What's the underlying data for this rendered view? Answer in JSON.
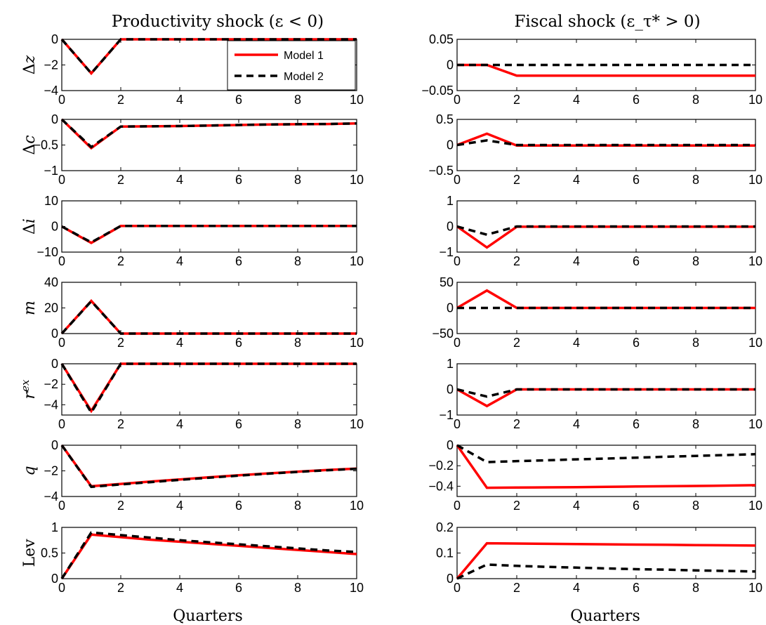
{
  "chart_data": {
    "type": "line",
    "x": [
      0,
      1,
      2,
      3,
      4,
      5,
      6,
      7,
      8,
      9,
      10
    ],
    "xlabel": "Quarters",
    "xticks": [
      "0",
      "2",
      "4",
      "6",
      "8",
      "10"
    ],
    "legend": {
      "placement": "top-right of first panel",
      "entries": [
        {
          "name": "Model 1",
          "color": "#ff0000",
          "style": "solid"
        },
        {
          "name": "Model 2",
          "color": "#000000",
          "style": "dashed"
        }
      ]
    },
    "columns": [
      {
        "title": "Productivity shock (ε < 0)",
        "panels": [
          {
            "ylabel": "Δz",
            "ylim": [
              -4,
              0
            ],
            "yticks": [
              "0",
              "−2",
              "−4"
            ],
            "series": [
              {
                "name": "Model 1",
                "values": [
                  0,
                  -2.65,
                  0,
                  0,
                  0,
                  0,
                  0,
                  0,
                  0,
                  0,
                  0
                ]
              },
              {
                "name": "Model 2",
                "values": [
                  0,
                  -2.65,
                  0,
                  0,
                  0,
                  0,
                  0,
                  0,
                  0,
                  0,
                  0
                ]
              }
            ]
          },
          {
            "ylabel": "Δc",
            "ylim": [
              -1,
              0
            ],
            "yticks": [
              "0",
              "−0.5",
              "−1"
            ],
            "series": [
              {
                "name": "Model 1",
                "values": [
                  0,
                  -0.56,
                  -0.14,
                  -0.135,
                  -0.13,
                  -0.12,
                  -0.11,
                  -0.1,
                  -0.095,
                  -0.09,
                  -0.08
                ]
              },
              {
                "name": "Model 2",
                "values": [
                  0,
                  -0.54,
                  -0.14,
                  -0.135,
                  -0.13,
                  -0.12,
                  -0.11,
                  -0.1,
                  -0.095,
                  -0.09,
                  -0.08
                ]
              }
            ]
          },
          {
            "ylabel": "Δi",
            "ylim": [
              -10,
              10
            ],
            "yticks": [
              "10",
              "0",
              "−10"
            ],
            "series": [
              {
                "name": "Model 1",
                "values": [
                  0,
                  -6.4,
                  0.2,
                  0.2,
                  0.2,
                  0.2,
                  0.2,
                  0.2,
                  0.2,
                  0.2,
                  0.2
                ]
              },
              {
                "name": "Model 2",
                "values": [
                  0,
                  -6.2,
                  0.2,
                  0.2,
                  0.2,
                  0.2,
                  0.2,
                  0.2,
                  0.2,
                  0.2,
                  0.2
                ]
              }
            ]
          },
          {
            "ylabel": "m",
            "ylim": [
              0,
              40
            ],
            "yticks": [
              "40",
              "20",
              "0"
            ],
            "series": [
              {
                "name": "Model 1",
                "values": [
                  0,
                  25.5,
                  0,
                  0,
                  0,
                  0,
                  0,
                  0,
                  0,
                  0,
                  0
                ]
              },
              {
                "name": "Model 2",
                "values": [
                  0,
                  25.2,
                  0,
                  0,
                  0,
                  0,
                  0,
                  0,
                  0,
                  0,
                  0
                ]
              }
            ]
          },
          {
            "ylabel": "r^ex",
            "ylim": [
              -5,
              0
            ],
            "yticks": [
              "0",
              "−2",
              "−4"
            ],
            "series": [
              {
                "name": "Model 1",
                "values": [
                  0,
                  -4.6,
                  0,
                  0,
                  0,
                  0,
                  0,
                  0,
                  0,
                  0,
                  0
                ]
              },
              {
                "name": "Model 2",
                "values": [
                  0,
                  -4.75,
                  0,
                  0,
                  0,
                  0,
                  0,
                  0,
                  0,
                  0,
                  0
                ]
              }
            ]
          },
          {
            "ylabel": "q",
            "ylim": [
              -4,
              0
            ],
            "yticks": [
              "0",
              "−2",
              "−4"
            ],
            "series": [
              {
                "name": "Model 1",
                "values": [
                  0,
                  -3.2,
                  -3.02,
                  -2.84,
                  -2.67,
                  -2.5,
                  -2.34,
                  -2.2,
                  -2.06,
                  -1.93,
                  -1.82
                ]
              },
              {
                "name": "Model 2",
                "values": [
                  0,
                  -3.25,
                  -3.06,
                  -2.88,
                  -2.7,
                  -2.53,
                  -2.37,
                  -2.22,
                  -2.08,
                  -1.95,
                  -1.84
                ]
              }
            ]
          },
          {
            "ylabel": "Lev",
            "ylim": [
              0,
              1
            ],
            "yticks": [
              "1",
              "0.5",
              "0"
            ],
            "series": [
              {
                "name": "Model 1",
                "values": [
                  0,
                  0.86,
                  0.81,
                  0.76,
                  0.72,
                  0.68,
                  0.64,
                  0.6,
                  0.56,
                  0.52,
                  0.48
                ]
              },
              {
                "name": "Model 2",
                "values": [
                  0,
                  0.9,
                  0.85,
                  0.8,
                  0.75,
                  0.71,
                  0.67,
                  0.63,
                  0.59,
                  0.55,
                  0.52
                ]
              }
            ]
          }
        ]
      },
      {
        "title": "Fiscal shock (ε_τ* > 0)",
        "panels": [
          {
            "ylabel": "",
            "ylim": [
              -0.05,
              0.05
            ],
            "yticks": [
              "0.05",
              "0",
              "−0.05"
            ],
            "series": [
              {
                "name": "Model 1",
                "values": [
                  0,
                  0,
                  -0.021,
                  -0.021,
                  -0.021,
                  -0.021,
                  -0.021,
                  -0.021,
                  -0.021,
                  -0.021,
                  -0.021
                ]
              },
              {
                "name": "Model 2",
                "values": [
                  0,
                  0,
                  0,
                  0,
                  0,
                  0,
                  0,
                  0,
                  0,
                  0,
                  0
                ]
              }
            ]
          },
          {
            "ylabel": "",
            "ylim": [
              -0.5,
              0.5
            ],
            "yticks": [
              "0.5",
              "0",
              "−0.5"
            ],
            "series": [
              {
                "name": "Model 1",
                "values": [
                  0,
                  0.22,
                  -0.01,
                  -0.01,
                  -0.01,
                  -0.01,
                  -0.01,
                  -0.01,
                  -0.01,
                  -0.01,
                  -0.01
                ]
              },
              {
                "name": "Model 2",
                "values": [
                  0,
                  0.09,
                  0,
                  0,
                  0,
                  0,
                  0,
                  0,
                  0,
                  0,
                  0
                ]
              }
            ]
          },
          {
            "ylabel": "",
            "ylim": [
              -1,
              1
            ],
            "yticks": [
              "1",
              "0",
              "−1"
            ],
            "series": [
              {
                "name": "Model 1",
                "values": [
                  0,
                  -0.82,
                  -0.01,
                  -0.01,
                  -0.01,
                  -0.01,
                  -0.01,
                  -0.01,
                  -0.01,
                  -0.01,
                  -0.01
                ]
              },
              {
                "name": "Model 2",
                "values": [
                  0,
                  -0.32,
                  0,
                  0,
                  0,
                  0,
                  0,
                  0,
                  0,
                  0,
                  0
                ]
              }
            ]
          },
          {
            "ylabel": "",
            "ylim": [
              -50,
              50
            ],
            "yticks": [
              "50",
              "0",
              "−50"
            ],
            "series": [
              {
                "name": "Model 1",
                "values": [
                  0,
                  34,
                  0,
                  0,
                  0,
                  0,
                  0,
                  0,
                  0,
                  0,
                  0
                ]
              },
              {
                "name": "Model 2",
                "values": [
                  0,
                  0,
                  0,
                  0,
                  0,
                  0,
                  0,
                  0,
                  0,
                  0,
                  0
                ]
              }
            ]
          },
          {
            "ylabel": "",
            "ylim": [
              -1,
              1
            ],
            "yticks": [
              "1",
              "0",
              "−1"
            ],
            "series": [
              {
                "name": "Model 1",
                "values": [
                  0,
                  -0.65,
                  0,
                  0,
                  0,
                  0,
                  0,
                  0,
                  0,
                  0,
                  0
                ]
              },
              {
                "name": "Model 2",
                "values": [
                  0,
                  -0.28,
                  0,
                  0,
                  0,
                  0,
                  0,
                  0,
                  0,
                  0,
                  0
                ]
              }
            ]
          },
          {
            "ylabel": "",
            "ylim": [
              -0.5,
              0
            ],
            "yticks": [
              "0",
              "−0.2",
              "−0.4"
            ],
            "series": [
              {
                "name": "Model 1",
                "values": [
                  0,
                  -0.415,
                  -0.413,
                  -0.411,
                  -0.409,
                  -0.406,
                  -0.403,
                  -0.4,
                  -0.397,
                  -0.394,
                  -0.39
                ]
              },
              {
                "name": "Model 2",
                "values": [
                  0,
                  -0.165,
                  -0.155,
                  -0.147,
                  -0.138,
                  -0.13,
                  -0.121,
                  -0.112,
                  -0.104,
                  -0.096,
                  -0.088
                ]
              }
            ]
          },
          {
            "ylabel": "",
            "ylim": [
              0,
              0.2
            ],
            "yticks": [
              "0.2",
              "0.1",
              "0"
            ],
            "series": [
              {
                "name": "Model 1",
                "values": [
                  0,
                  0.138,
                  0.137,
                  0.136,
                  0.135,
                  0.134,
                  0.133,
                  0.132,
                  0.131,
                  0.13,
                  0.129
                ]
              },
              {
                "name": "Model 2",
                "values": [
                  0,
                  0.055,
                  0.05,
                  0.046,
                  0.043,
                  0.04,
                  0.037,
                  0.035,
                  0.032,
                  0.03,
                  0.028
                ]
              }
            ]
          }
        ]
      }
    ]
  }
}
